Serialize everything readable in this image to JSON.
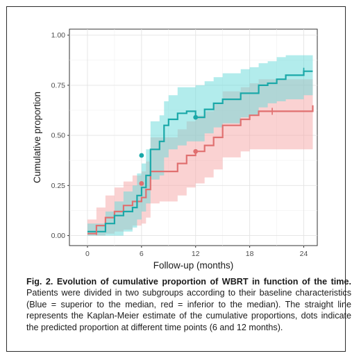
{
  "chart_data": {
    "type": "line",
    "xlabel": "Follow-up (months)",
    "ylabel": "Cumulative proportion",
    "xlim": [
      -2,
      25.5
    ],
    "ylim": [
      -0.05,
      1.03
    ],
    "x_ticks": [
      0,
      6,
      12,
      18,
      24
    ],
    "y_ticks": [
      0.0,
      0.25,
      0.5,
      0.75,
      1.0
    ],
    "y_tick_labels": [
      "0.00",
      "0.25",
      "0.50",
      "0.75",
      "1.00"
    ],
    "grid": true,
    "legend": "none",
    "series": [
      {
        "color": "#1aa8a8",
        "band_color": "#66d9d9",
        "x": [
          0,
          1,
          2,
          3,
          4,
          5,
          5.5,
          6,
          6.5,
          7,
          8,
          8.5,
          9,
          10,
          11,
          12,
          13,
          14,
          15,
          16,
          17,
          18,
          19,
          20,
          21,
          22,
          23,
          24,
          25
        ],
        "y": [
          0.02,
          0.02,
          0.06,
          0.1,
          0.12,
          0.14,
          0.2,
          0.24,
          0.3,
          0.43,
          0.47,
          0.55,
          0.58,
          0.61,
          0.62,
          0.59,
          0.63,
          0.66,
          0.68,
          0.68,
          0.71,
          0.71,
          0.75,
          0.76,
          0.78,
          0.8,
          0.8,
          0.82,
          0.82
        ],
        "lower": [
          0.0,
          0.0,
          0.0,
          0.0,
          0.02,
          0.04,
          0.08,
          0.12,
          0.16,
          0.28,
          0.3,
          0.39,
          0.43,
          0.45,
          0.47,
          0.47,
          0.51,
          0.54,
          0.56,
          0.56,
          0.59,
          0.6,
          0.64,
          0.66,
          0.67,
          0.68,
          0.68,
          0.7,
          0.7
        ],
        "upper": [
          0.06,
          0.06,
          0.12,
          0.17,
          0.22,
          0.25,
          0.31,
          0.36,
          0.43,
          0.57,
          0.6,
          0.67,
          0.7,
          0.74,
          0.74,
          0.75,
          0.77,
          0.79,
          0.81,
          0.81,
          0.83,
          0.84,
          0.86,
          0.87,
          0.89,
          0.9,
          0.9,
          0.9,
          0.9
        ],
        "predicted_points": [
          {
            "x": 6,
            "y": 0.4
          },
          {
            "x": 12,
            "y": 0.59
          }
        ],
        "censor_marks": [
          {
            "x": 24,
            "y": 0.82
          }
        ]
      },
      {
        "color": "#e07070",
        "band_color": "#f6a5a5",
        "x": [
          0,
          1,
          2,
          3,
          4,
          5,
          6,
          6.5,
          7,
          8,
          9,
          10,
          11,
          12,
          13,
          14,
          15,
          16,
          17,
          18,
          19,
          20,
          21,
          22,
          23,
          24,
          25
        ],
        "y": [
          0.01,
          0.05,
          0.09,
          0.12,
          0.15,
          0.17,
          0.19,
          0.23,
          0.32,
          0.32,
          0.32,
          0.36,
          0.4,
          0.42,
          0.45,
          0.49,
          0.55,
          0.55,
          0.58,
          0.6,
          0.62,
          0.62,
          0.62,
          0.62,
          0.62,
          0.62,
          0.65
        ],
        "lower": [
          0.0,
          0.0,
          0.01,
          0.02,
          0.03,
          0.05,
          0.06,
          0.09,
          0.16,
          0.17,
          0.17,
          0.2,
          0.24,
          0.26,
          0.29,
          0.33,
          0.39,
          0.39,
          0.42,
          0.43,
          0.43,
          0.43,
          0.43,
          0.43,
          0.43,
          0.43,
          0.41
        ],
        "upper": [
          0.08,
          0.14,
          0.2,
          0.24,
          0.27,
          0.3,
          0.32,
          0.37,
          0.49,
          0.49,
          0.49,
          0.53,
          0.57,
          0.6,
          0.62,
          0.66,
          0.72,
          0.72,
          0.74,
          0.76,
          0.78,
          0.78,
          0.78,
          0.78,
          0.78,
          0.78,
          0.82
        ],
        "predicted_points": [
          {
            "x": 6,
            "y": 0.26
          },
          {
            "x": 12,
            "y": 0.42
          }
        ],
        "censor_marks": [
          {
            "x": 1,
            "y": 0.02
          },
          {
            "x": 20.5,
            "y": 0.62
          }
        ]
      }
    ]
  },
  "caption": {
    "title": "Fig. 2. Evolution of cumulative proportion of WBRT in function of the time",
    "title_period": ".",
    "body": "Patients were divided in two subgroups according to their baseline characteristics (Blue = superior to the median, red = inferior to the median). The straight line represents the Kaplan-Meier estimate of the cumulative proportions, dots indicate the predicted proportion at different time points (6 and 12 months)."
  }
}
